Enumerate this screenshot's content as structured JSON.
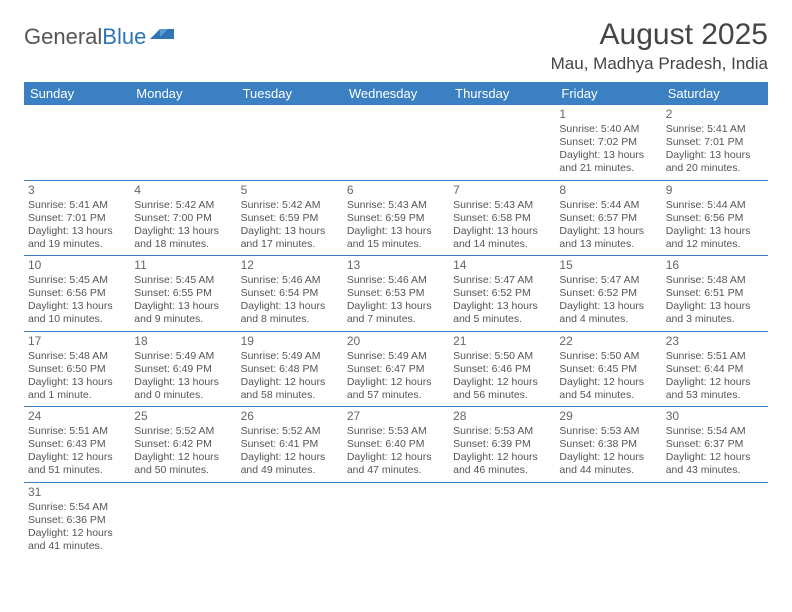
{
  "logo": {
    "general": "General",
    "blue": "Blue"
  },
  "title": "August 2025",
  "subtitle": "Mau, Madhya Pradesh, India",
  "colors": {
    "header_bg": "#3a80c2",
    "header_text": "#ffffff",
    "border": "#3a80c2",
    "text": "#555555",
    "title_text": "#444444",
    "logo_gray": "#555555",
    "logo_blue": "#2f75b5",
    "background": "#ffffff"
  },
  "dow": [
    "Sunday",
    "Monday",
    "Tuesday",
    "Wednesday",
    "Thursday",
    "Friday",
    "Saturday"
  ],
  "weeks": [
    [
      null,
      null,
      null,
      null,
      null,
      {
        "n": "1",
        "sunrise": "Sunrise: 5:40 AM",
        "sunset": "Sunset: 7:02 PM",
        "daylight": "Daylight: 13 hours and 21 minutes."
      },
      {
        "n": "2",
        "sunrise": "Sunrise: 5:41 AM",
        "sunset": "Sunset: 7:01 PM",
        "daylight": "Daylight: 13 hours and 20 minutes."
      }
    ],
    [
      {
        "n": "3",
        "sunrise": "Sunrise: 5:41 AM",
        "sunset": "Sunset: 7:01 PM",
        "daylight": "Daylight: 13 hours and 19 minutes."
      },
      {
        "n": "4",
        "sunrise": "Sunrise: 5:42 AM",
        "sunset": "Sunset: 7:00 PM",
        "daylight": "Daylight: 13 hours and 18 minutes."
      },
      {
        "n": "5",
        "sunrise": "Sunrise: 5:42 AM",
        "sunset": "Sunset: 6:59 PM",
        "daylight": "Daylight: 13 hours and 17 minutes."
      },
      {
        "n": "6",
        "sunrise": "Sunrise: 5:43 AM",
        "sunset": "Sunset: 6:59 PM",
        "daylight": "Daylight: 13 hours and 15 minutes."
      },
      {
        "n": "7",
        "sunrise": "Sunrise: 5:43 AM",
        "sunset": "Sunset: 6:58 PM",
        "daylight": "Daylight: 13 hours and 14 minutes."
      },
      {
        "n": "8",
        "sunrise": "Sunrise: 5:44 AM",
        "sunset": "Sunset: 6:57 PM",
        "daylight": "Daylight: 13 hours and 13 minutes."
      },
      {
        "n": "9",
        "sunrise": "Sunrise: 5:44 AM",
        "sunset": "Sunset: 6:56 PM",
        "daylight": "Daylight: 13 hours and 12 minutes."
      }
    ],
    [
      {
        "n": "10",
        "sunrise": "Sunrise: 5:45 AM",
        "sunset": "Sunset: 6:56 PM",
        "daylight": "Daylight: 13 hours and 10 minutes."
      },
      {
        "n": "11",
        "sunrise": "Sunrise: 5:45 AM",
        "sunset": "Sunset: 6:55 PM",
        "daylight": "Daylight: 13 hours and 9 minutes."
      },
      {
        "n": "12",
        "sunrise": "Sunrise: 5:46 AM",
        "sunset": "Sunset: 6:54 PM",
        "daylight": "Daylight: 13 hours and 8 minutes."
      },
      {
        "n": "13",
        "sunrise": "Sunrise: 5:46 AM",
        "sunset": "Sunset: 6:53 PM",
        "daylight": "Daylight: 13 hours and 7 minutes."
      },
      {
        "n": "14",
        "sunrise": "Sunrise: 5:47 AM",
        "sunset": "Sunset: 6:52 PM",
        "daylight": "Daylight: 13 hours and 5 minutes."
      },
      {
        "n": "15",
        "sunrise": "Sunrise: 5:47 AM",
        "sunset": "Sunset: 6:52 PM",
        "daylight": "Daylight: 13 hours and 4 minutes."
      },
      {
        "n": "16",
        "sunrise": "Sunrise: 5:48 AM",
        "sunset": "Sunset: 6:51 PM",
        "daylight": "Daylight: 13 hours and 3 minutes."
      }
    ],
    [
      {
        "n": "17",
        "sunrise": "Sunrise: 5:48 AM",
        "sunset": "Sunset: 6:50 PM",
        "daylight": "Daylight: 13 hours and 1 minute."
      },
      {
        "n": "18",
        "sunrise": "Sunrise: 5:49 AM",
        "sunset": "Sunset: 6:49 PM",
        "daylight": "Daylight: 13 hours and 0 minutes."
      },
      {
        "n": "19",
        "sunrise": "Sunrise: 5:49 AM",
        "sunset": "Sunset: 6:48 PM",
        "daylight": "Daylight: 12 hours and 58 minutes."
      },
      {
        "n": "20",
        "sunrise": "Sunrise: 5:49 AM",
        "sunset": "Sunset: 6:47 PM",
        "daylight": "Daylight: 12 hours and 57 minutes."
      },
      {
        "n": "21",
        "sunrise": "Sunrise: 5:50 AM",
        "sunset": "Sunset: 6:46 PM",
        "daylight": "Daylight: 12 hours and 56 minutes."
      },
      {
        "n": "22",
        "sunrise": "Sunrise: 5:50 AM",
        "sunset": "Sunset: 6:45 PM",
        "daylight": "Daylight: 12 hours and 54 minutes."
      },
      {
        "n": "23",
        "sunrise": "Sunrise: 5:51 AM",
        "sunset": "Sunset: 6:44 PM",
        "daylight": "Daylight: 12 hours and 53 minutes."
      }
    ],
    [
      {
        "n": "24",
        "sunrise": "Sunrise: 5:51 AM",
        "sunset": "Sunset: 6:43 PM",
        "daylight": "Daylight: 12 hours and 51 minutes."
      },
      {
        "n": "25",
        "sunrise": "Sunrise: 5:52 AM",
        "sunset": "Sunset: 6:42 PM",
        "daylight": "Daylight: 12 hours and 50 minutes."
      },
      {
        "n": "26",
        "sunrise": "Sunrise: 5:52 AM",
        "sunset": "Sunset: 6:41 PM",
        "daylight": "Daylight: 12 hours and 49 minutes."
      },
      {
        "n": "27",
        "sunrise": "Sunrise: 5:53 AM",
        "sunset": "Sunset: 6:40 PM",
        "daylight": "Daylight: 12 hours and 47 minutes."
      },
      {
        "n": "28",
        "sunrise": "Sunrise: 5:53 AM",
        "sunset": "Sunset: 6:39 PM",
        "daylight": "Daylight: 12 hours and 46 minutes."
      },
      {
        "n": "29",
        "sunrise": "Sunrise: 5:53 AM",
        "sunset": "Sunset: 6:38 PM",
        "daylight": "Daylight: 12 hours and 44 minutes."
      },
      {
        "n": "30",
        "sunrise": "Sunrise: 5:54 AM",
        "sunset": "Sunset: 6:37 PM",
        "daylight": "Daylight: 12 hours and 43 minutes."
      }
    ],
    [
      {
        "n": "31",
        "sunrise": "Sunrise: 5:54 AM",
        "sunset": "Sunset: 6:36 PM",
        "daylight": "Daylight: 12 hours and 41 minutes."
      },
      null,
      null,
      null,
      null,
      null,
      null
    ]
  ]
}
